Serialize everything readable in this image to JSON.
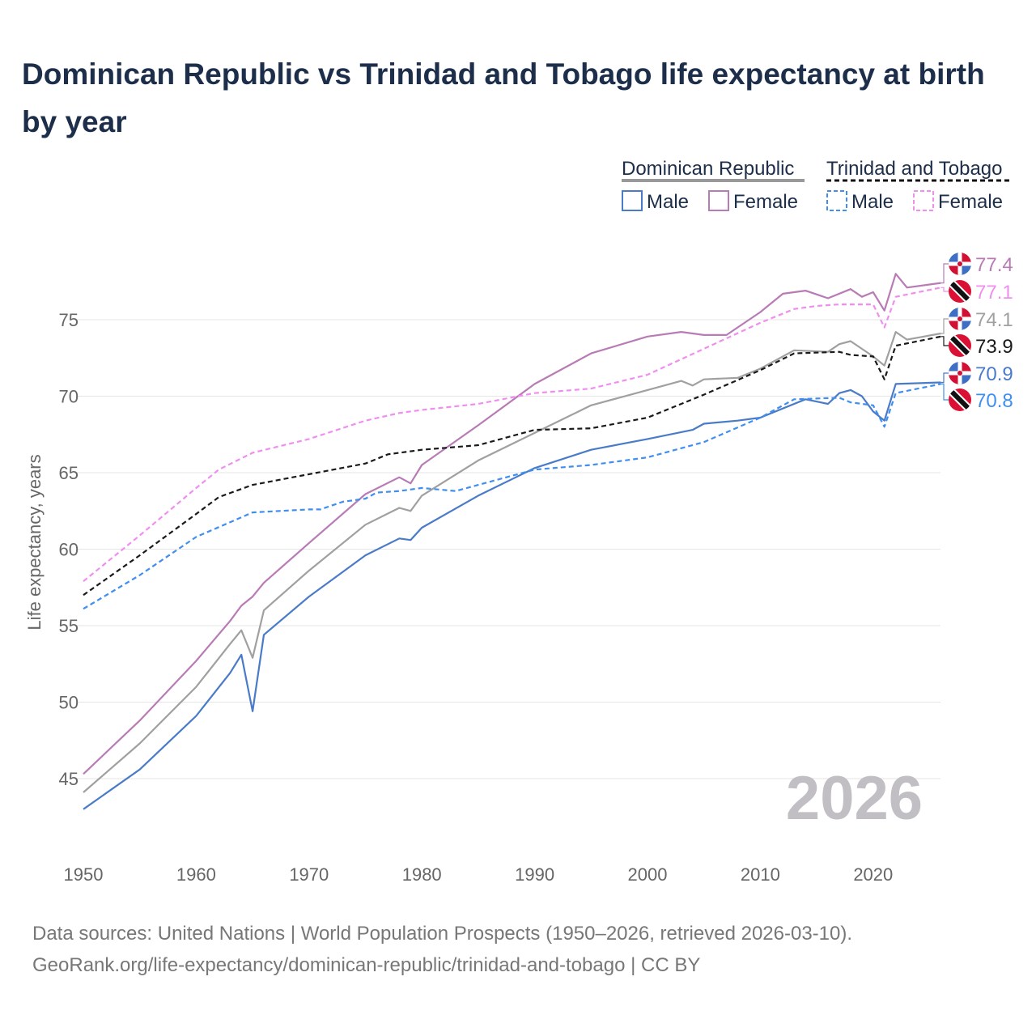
{
  "title": "Dominican Republic vs Trinidad and Tobago life expectancy at birth by year",
  "footer": {
    "line1": "Data sources: United Nations | World Population Prospects (1950–2026, retrieved 2026-03-10).",
    "line2": "GeoRank.org/life-expectancy/dominican-republic/trinidad-and-tobago | CC BY"
  },
  "chart_data": {
    "type": "line",
    "title": "Dominican Republic vs Trinidad and Tobago life expectancy at birth by year",
    "xlabel": "",
    "ylabel": "Life expectancy, years",
    "xlim": [
      1950,
      2026
    ],
    "ylim": [
      43,
      79
    ],
    "x_ticks": [
      "1950",
      "1960",
      "1970",
      "1980",
      "1990",
      "2000",
      "2010",
      "2020"
    ],
    "y_ticks": [
      "45",
      "50",
      "55",
      "60",
      "65",
      "70",
      "75"
    ],
    "year_watermark": "2026",
    "legend": {
      "groups": [
        {
          "label": "Dominican Republic",
          "items": [
            "Male",
            "Female"
          ]
        },
        {
          "label": "Trinidad and Tobago",
          "items": [
            "Male",
            "Female"
          ]
        }
      ]
    },
    "series": [
      {
        "name": "Dominican Republic Female",
        "color": "#b87bb5",
        "dash": false,
        "flag": "dominican-republic",
        "end_label": "77.4",
        "points": [
          [
            1950,
            45.3
          ],
          [
            1955,
            48.8
          ],
          [
            1960,
            52.7
          ],
          [
            1963,
            55.3
          ],
          [
            1964,
            56.3
          ],
          [
            1965,
            56.9
          ],
          [
            1966,
            57.8
          ],
          [
            1970,
            60.4
          ],
          [
            1975,
            63.6
          ],
          [
            1978,
            64.7
          ],
          [
            1979,
            64.3
          ],
          [
            1980,
            65.5
          ],
          [
            1985,
            68.1
          ],
          [
            1990,
            70.8
          ],
          [
            1995,
            72.8
          ],
          [
            2000,
            73.9
          ],
          [
            2003,
            74.2
          ],
          [
            2005,
            74.0
          ],
          [
            2007,
            74.0
          ],
          [
            2010,
            75.5
          ],
          [
            2012,
            76.7
          ],
          [
            2014,
            76.9
          ],
          [
            2016,
            76.4
          ],
          [
            2018,
            77.0
          ],
          [
            2019,
            76.5
          ],
          [
            2020,
            76.8
          ],
          [
            2021,
            75.6
          ],
          [
            2022,
            78.0
          ],
          [
            2023,
            77.1
          ],
          [
            2026,
            77.4
          ]
        ]
      },
      {
        "name": "Trinidad and Tobago Female",
        "color": "#f08ef0",
        "dash": true,
        "flag": "trinidad-and-tobago",
        "end_label": "77.1",
        "points": [
          [
            1950,
            57.9
          ],
          [
            1955,
            60.9
          ],
          [
            1960,
            64.0
          ],
          [
            1962,
            65.2
          ],
          [
            1965,
            66.3
          ],
          [
            1970,
            67.2
          ],
          [
            1975,
            68.4
          ],
          [
            1978,
            68.9
          ],
          [
            1980,
            69.1
          ],
          [
            1985,
            69.5
          ],
          [
            1990,
            70.2
          ],
          [
            1995,
            70.5
          ],
          [
            2000,
            71.4
          ],
          [
            2005,
            73.1
          ],
          [
            2010,
            74.8
          ],
          [
            2013,
            75.7
          ],
          [
            2015,
            75.9
          ],
          [
            2017,
            76.0
          ],
          [
            2020,
            76.0
          ],
          [
            2021,
            74.5
          ],
          [
            2022,
            76.5
          ],
          [
            2026,
            77.1
          ]
        ]
      },
      {
        "name": "Dominican Republic Total",
        "color": "#a0a0a0",
        "dash": false,
        "flag": "dominican-republic",
        "end_label": "74.1",
        "points": [
          [
            1950,
            44.1
          ],
          [
            1955,
            47.3
          ],
          [
            1960,
            51.0
          ],
          [
            1963,
            53.8
          ],
          [
            1964,
            54.7
          ],
          [
            1965,
            52.9
          ],
          [
            1966,
            56.0
          ],
          [
            1970,
            58.6
          ],
          [
            1975,
            61.6
          ],
          [
            1978,
            62.7
          ],
          [
            1979,
            62.5
          ],
          [
            1980,
            63.5
          ],
          [
            1985,
            65.8
          ],
          [
            1990,
            67.6
          ],
          [
            1995,
            69.4
          ],
          [
            2000,
            70.4
          ],
          [
            2003,
            71.0
          ],
          [
            2004,
            70.7
          ],
          [
            2005,
            71.1
          ],
          [
            2008,
            71.2
          ],
          [
            2010,
            71.8
          ],
          [
            2013,
            73.0
          ],
          [
            2016,
            72.9
          ],
          [
            2017,
            73.4
          ],
          [
            2018,
            73.6
          ],
          [
            2020,
            72.6
          ],
          [
            2021,
            72.0
          ],
          [
            2022,
            74.2
          ],
          [
            2023,
            73.7
          ],
          [
            2026,
            74.1
          ]
        ]
      },
      {
        "name": "Trinidad and Tobago Total",
        "color": "#1a1a1a",
        "dash": true,
        "flag": "trinidad-and-tobago",
        "end_label": "73.9",
        "points": [
          [
            1950,
            57.0
          ],
          [
            1955,
            59.6
          ],
          [
            1960,
            62.3
          ],
          [
            1962,
            63.4
          ],
          [
            1965,
            64.2
          ],
          [
            1970,
            64.9
          ],
          [
            1975,
            65.6
          ],
          [
            1977,
            66.2
          ],
          [
            1980,
            66.5
          ],
          [
            1985,
            66.8
          ],
          [
            1990,
            67.8
          ],
          [
            1995,
            67.9
          ],
          [
            2000,
            68.6
          ],
          [
            2005,
            70.1
          ],
          [
            2010,
            71.7
          ],
          [
            2013,
            72.8
          ],
          [
            2017,
            72.9
          ],
          [
            2018,
            72.7
          ],
          [
            2020,
            72.6
          ],
          [
            2021,
            71.1
          ],
          [
            2022,
            73.3
          ],
          [
            2026,
            73.9
          ]
        ]
      },
      {
        "name": "Dominican Republic Male",
        "color": "#4a7bc8",
        "dash": false,
        "flag": "dominican-republic",
        "end_label": "70.9",
        "points": [
          [
            1950,
            43.0
          ],
          [
            1955,
            45.6
          ],
          [
            1960,
            49.1
          ],
          [
            1963,
            51.9
          ],
          [
            1964,
            53.1
          ],
          [
            1965,
            49.4
          ],
          [
            1966,
            54.4
          ],
          [
            1970,
            56.9
          ],
          [
            1975,
            59.6
          ],
          [
            1978,
            60.7
          ],
          [
            1979,
            60.6
          ],
          [
            1980,
            61.4
          ],
          [
            1985,
            63.5
          ],
          [
            1990,
            65.3
          ],
          [
            1995,
            66.5
          ],
          [
            2000,
            67.2
          ],
          [
            2004,
            67.8
          ],
          [
            2005,
            68.2
          ],
          [
            2008,
            68.4
          ],
          [
            2010,
            68.6
          ],
          [
            2014,
            69.8
          ],
          [
            2016,
            69.5
          ],
          [
            2017,
            70.2
          ],
          [
            2018,
            70.4
          ],
          [
            2019,
            70.0
          ],
          [
            2020,
            69.0
          ],
          [
            2021,
            68.4
          ],
          [
            2022,
            70.8
          ],
          [
            2026,
            70.9
          ]
        ]
      },
      {
        "name": "Trinidad and Tobago Male",
        "color": "#3f8ef0",
        "dash": true,
        "flag": "trinidad-and-tobago",
        "end_label": "70.8",
        "points": [
          [
            1950,
            56.1
          ],
          [
            1955,
            58.3
          ],
          [
            1960,
            60.8
          ],
          [
            1965,
            62.4
          ],
          [
            1970,
            62.6
          ],
          [
            1971,
            62.6
          ],
          [
            1973,
            63.1
          ],
          [
            1975,
            63.3
          ],
          [
            1976,
            63.7
          ],
          [
            1978,
            63.8
          ],
          [
            1980,
            64.0
          ],
          [
            1983,
            63.8
          ],
          [
            1985,
            64.2
          ],
          [
            1990,
            65.2
          ],
          [
            1995,
            65.5
          ],
          [
            2000,
            66.0
          ],
          [
            2005,
            67.0
          ],
          [
            2010,
            68.6
          ],
          [
            2013,
            69.8
          ],
          [
            2017,
            69.9
          ],
          [
            2018,
            69.6
          ],
          [
            2020,
            69.4
          ],
          [
            2021,
            68.0
          ],
          [
            2022,
            70.2
          ],
          [
            2026,
            70.8
          ]
        ]
      }
    ]
  }
}
